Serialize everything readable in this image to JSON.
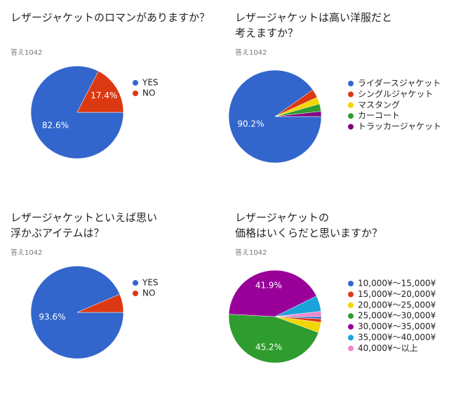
{
  "chart_data": [
    {
      "type": "pie",
      "title": "レザージャケットのロマンがありますか？",
      "subtitle": "答え1042",
      "categories": [
        "YES",
        "NO"
      ],
      "values": [
        82.6,
        17.4
      ],
      "value_labels": [
        "82.6%",
        "17.4%"
      ],
      "colors": [
        "#3366cc",
        "#dc3912"
      ]
    },
    {
      "type": "pie",
      "title": "レザージャケットは高い洋服だと\n考えますか？",
      "subtitle": "答え1042",
      "categories": [
        "ライダースジャケット",
        "シングルジャケット",
        "マスタング",
        "カーコート",
        "トラッカージャケット"
      ],
      "values": [
        90.2,
        3.0,
        2.4,
        2.6,
        1.8
      ],
      "value_labels": [
        "90.2%",
        null,
        null,
        null,
        null
      ],
      "colors": [
        "#3366cc",
        "#dc3912",
        "#f2d600",
        "#2e9c2e",
        "#800080"
      ]
    },
    {
      "type": "pie",
      "title": "レザージャケットといえば思い\n浮かぶアイテムは？",
      "subtitle": "答え1042",
      "categories": [
        "YES",
        "NO"
      ],
      "values": [
        93.6,
        6.4
      ],
      "value_labels": [
        "93.6%",
        null
      ],
      "colors": [
        "#3366cc",
        "#dc3912"
      ]
    },
    {
      "type": "pie",
      "title": "レザージャケットの\n価格はいくらだと思いますか？",
      "subtitle": "答え1042",
      "categories": [
        "10,000¥～15,000¥",
        "15,000¥～20,000¥",
        "20,000¥～25,000¥",
        "25,000¥～30,000¥",
        "30,000¥～35,000¥",
        "35,000¥～40,000¥",
        "40,000¥～以上"
      ],
      "values": [
        0.8,
        1.2,
        3.6,
        45.2,
        41.9,
        5.5,
        1.8
      ],
      "value_labels": [
        null,
        null,
        null,
        "45.2%",
        "41.9%",
        null,
        null
      ],
      "colors": [
        "#3366cc",
        "#dc3912",
        "#f2d600",
        "#2e9c2e",
        "#990099",
        "#1aa3d9",
        "#ee88cc"
      ]
    }
  ]
}
